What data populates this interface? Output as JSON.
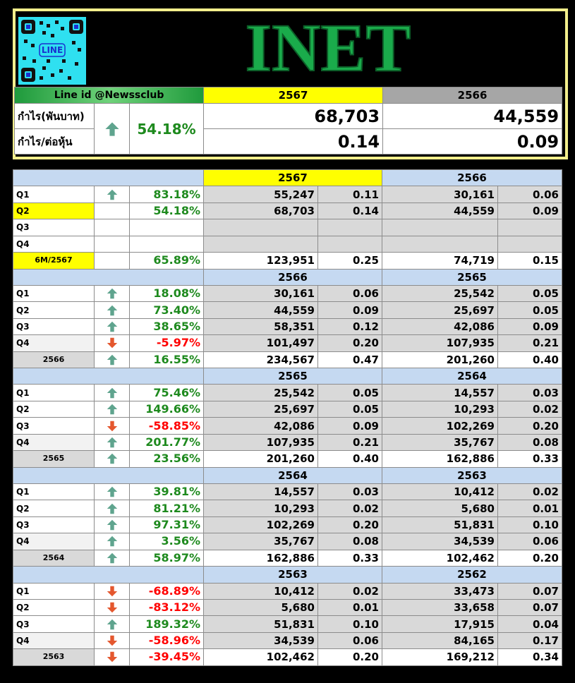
{
  "header": {
    "logo_text": "LINE",
    "title": "INET",
    "line_id": "Line id @Newssclub",
    "year_current": "2567",
    "year_previous": "2566",
    "profit_label": "กำไร(พันบาท)",
    "eps_label": "กำไร/ต่อหุ้น",
    "direction": "up",
    "change": "54.18%",
    "profit_current": "68,703",
    "profit_previous": "44,559",
    "eps_current": "0.14",
    "eps_previous": "0.09"
  },
  "sections": [
    {
      "year_a": "2567",
      "year_b": "2566",
      "rows": [
        {
          "label": "Q1",
          "direction": "up",
          "change": "83.18%",
          "profit_a": "55,247",
          "eps_a": "0.11",
          "profit_b": "30,161",
          "eps_b": "0.06"
        },
        {
          "label": "Q2",
          "change": "54.18%",
          "profit_a": "68,703",
          "eps_a": "0.14",
          "profit_b": "44,559",
          "eps_b": "0.09"
        },
        {
          "label": "Q3"
        },
        {
          "label": "Q4"
        },
        {
          "label": "6M/2567",
          "change": "65.89%",
          "profit_a": "123,951",
          "eps_a": "0.25",
          "profit_b": "74,719",
          "eps_b": "0.15"
        }
      ]
    },
    {
      "year_a": "2566",
      "year_b": "2565",
      "rows": [
        {
          "label": "Q1",
          "direction": "up",
          "change": "18.08%",
          "profit_a": "30,161",
          "eps_a": "0.06",
          "profit_b": "25,542",
          "eps_b": "0.05"
        },
        {
          "label": "Q2",
          "direction": "up",
          "change": "73.40%",
          "profit_a": "44,559",
          "eps_a": "0.09",
          "profit_b": "25,697",
          "eps_b": "0.05"
        },
        {
          "label": "Q3",
          "direction": "up",
          "change": "38.65%",
          "profit_a": "58,351",
          "eps_a": "0.12",
          "profit_b": "42,086",
          "eps_b": "0.09"
        },
        {
          "label": "Q4",
          "direction": "down",
          "change": "-5.97%",
          "profit_a": "101,497",
          "eps_a": "0.20",
          "profit_b": "107,935",
          "eps_b": "0.21"
        },
        {
          "label": "2566",
          "direction": "up",
          "change": "16.55%",
          "profit_a": "234,567",
          "eps_a": "0.47",
          "profit_b": "201,260",
          "eps_b": "0.40"
        }
      ]
    },
    {
      "year_a": "2565",
      "year_b": "2564",
      "rows": [
        {
          "label": "Q1",
          "direction": "up",
          "change": "75.46%",
          "profit_a": "25,542",
          "eps_a": "0.05",
          "profit_b": "14,557",
          "eps_b": "0.03"
        },
        {
          "label": "Q2",
          "direction": "up",
          "change": "149.66%",
          "profit_a": "25,697",
          "eps_a": "0.05",
          "profit_b": "10,293",
          "eps_b": "0.02"
        },
        {
          "label": "Q3",
          "direction": "down",
          "change": "-58.85%",
          "profit_a": "42,086",
          "eps_a": "0.09",
          "profit_b": "102,269",
          "eps_b": "0.20"
        },
        {
          "label": "Q4",
          "direction": "up",
          "change": "201.77%",
          "profit_a": "107,935",
          "eps_a": "0.21",
          "profit_b": "35,767",
          "eps_b": "0.08"
        },
        {
          "label": "2565",
          "direction": "up",
          "change": "23.56%",
          "profit_a": "201,260",
          "eps_a": "0.40",
          "profit_b": "162,886",
          "eps_b": "0.33"
        }
      ]
    },
    {
      "year_a": "2564",
      "year_b": "2563",
      "rows": [
        {
          "label": "Q1",
          "direction": "up",
          "change": "39.81%",
          "profit_a": "14,557",
          "eps_a": "0.03",
          "profit_b": "10,412",
          "eps_b": "0.02"
        },
        {
          "label": "Q2",
          "direction": "up",
          "change": "81.21%",
          "profit_a": "10,293",
          "eps_a": "0.02",
          "profit_b": "5,680",
          "eps_b": "0.01"
        },
        {
          "label": "Q3",
          "direction": "up",
          "change": "97.31%",
          "profit_a": "102,269",
          "eps_a": "0.20",
          "profit_b": "51,831",
          "eps_b": "0.10"
        },
        {
          "label": "Q4",
          "direction": "up",
          "change": "3.56%",
          "profit_a": "35,767",
          "eps_a": "0.08",
          "profit_b": "34,539",
          "eps_b": "0.06"
        },
        {
          "label": "2564",
          "direction": "up",
          "change": "58.97%",
          "profit_a": "162,886",
          "eps_a": "0.33",
          "profit_b": "102,462",
          "eps_b": "0.20"
        }
      ]
    },
    {
      "year_a": "2563",
      "year_b": "2562",
      "rows": [
        {
          "label": "Q1",
          "direction": "down",
          "change": "-68.89%",
          "profit_a": "10,412",
          "eps_a": "0.02",
          "profit_b": "33,473",
          "eps_b": "0.07"
        },
        {
          "label": "Q2",
          "direction": "down",
          "change": "-83.12%",
          "profit_a": "5,680",
          "eps_a": "0.01",
          "profit_b": "33,658",
          "eps_b": "0.07"
        },
        {
          "label": "Q3",
          "direction": "up",
          "change": "189.32%",
          "profit_a": "51,831",
          "eps_a": "0.10",
          "profit_b": "17,915",
          "eps_b": "0.04"
        },
        {
          "label": "Q4",
          "direction": "down",
          "change": "-58.96%",
          "profit_a": "34,539",
          "eps_a": "0.06",
          "profit_b": "84,165",
          "eps_b": "0.17"
        },
        {
          "label": "2563",
          "direction": "down",
          "change": "-39.45%",
          "profit_a": "102,462",
          "eps_a": "0.20",
          "profit_b": "169,212",
          "eps_b": "0.34"
        }
      ]
    }
  ]
}
